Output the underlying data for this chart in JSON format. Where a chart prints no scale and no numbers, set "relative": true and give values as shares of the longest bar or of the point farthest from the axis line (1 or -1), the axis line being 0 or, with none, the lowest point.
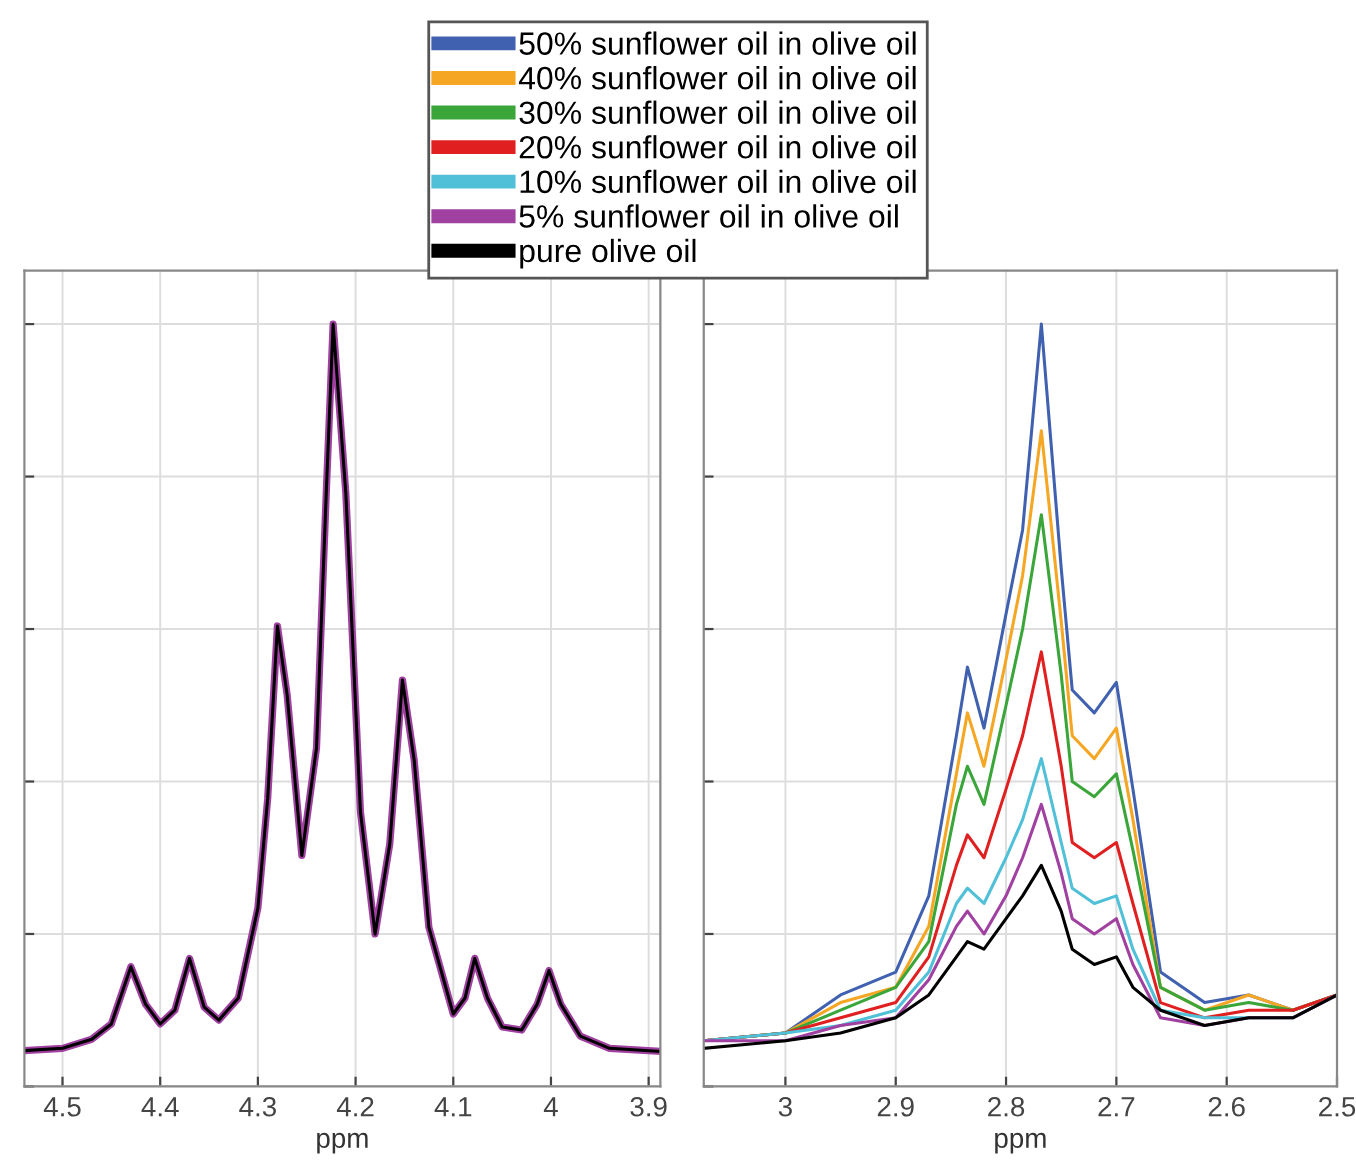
{
  "chart_data": [
    {
      "type": "line",
      "relative": true,
      "xlabel": "ppm",
      "xlim": [
        4.539,
        3.888
      ],
      "xticks": [
        4.5,
        4.4,
        4.3,
        4.2,
        4.1,
        4,
        3.9
      ],
      "grid": true,
      "tick_labels": "x",
      "x": [
        4.539,
        4.5,
        4.47,
        4.45,
        4.43,
        4.415,
        4.4,
        4.385,
        4.37,
        4.355,
        4.34,
        4.32,
        4.3,
        4.29,
        4.28,
        4.27,
        4.255,
        4.24,
        4.23,
        4.223,
        4.21,
        4.195,
        4.18,
        4.165,
        4.152,
        4.14,
        4.125,
        4.1,
        4.088,
        4.078,
        4.065,
        4.05,
        4.03,
        4.014,
        4.002,
        3.99,
        3.97,
        3.94,
        3.888
      ],
      "series": [
        {
          "color": "#a040a0",
          "values": [
            0.047,
            0.05,
            0.062,
            0.082,
            0.157,
            0.108,
            0.082,
            0.1,
            0.168,
            0.104,
            0.087,
            0.116,
            0.234,
            0.377,
            0.604,
            0.513,
            0.303,
            0.444,
            0.779,
            1,
            0.779,
            0.36,
            0.2,
            0.318,
            0.533,
            0.428,
            0.209,
            0.095,
            0.116,
            0.168,
            0.116,
            0.078,
            0.074,
            0.108,
            0.152,
            0.108,
            0.066,
            0.05,
            0.046
          ]
        },
        {
          "color": "#000000",
          "values": [
            0.047,
            0.05,
            0.062,
            0.082,
            0.157,
            0.108,
            0.082,
            0.1,
            0.168,
            0.104,
            0.087,
            0.116,
            0.234,
            0.377,
            0.604,
            0.513,
            0.303,
            0.444,
            0.779,
            1,
            0.779,
            0.36,
            0.2,
            0.318,
            0.533,
            0.428,
            0.209,
            0.095,
            0.116,
            0.168,
            0.116,
            0.078,
            0.074,
            0.108,
            0.152,
            0.108,
            0.066,
            0.05,
            0.046
          ]
        }
      ]
    },
    {
      "type": "line",
      "relative": true,
      "xlabel": "ppm",
      "xlim": [
        3.074,
        2.5
      ],
      "xticks": [
        3,
        2.9,
        2.8,
        2.7,
        2.6,
        2.5
      ],
      "grid": true,
      "tick_labels": "x",
      "legend": "top",
      "x": [
        3.074,
        3.0,
        2.95,
        2.9,
        2.87,
        2.845,
        2.835,
        2.82,
        2.8,
        2.785,
        2.768,
        2.75,
        2.74,
        2.72,
        2.7,
        2.685,
        2.66,
        2.62,
        2.58,
        2.54,
        2.5
      ],
      "series": [
        {
          "name": "50% sunflower oil in olive oil",
          "color": "#4060b0",
          "values": [
            0.06,
            0.07,
            0.12,
            0.15,
            0.25,
            0.46,
            0.55,
            0.47,
            0.62,
            0.73,
            1,
            0.68,
            0.52,
            0.49,
            0.53,
            0.39,
            0.15,
            0.11,
            0.12,
            0.1,
            0.12
          ]
        },
        {
          "name": "40% sunflower oil in olive oil",
          "color": "#f5a623",
          "values": [
            0.06,
            0.07,
            0.11,
            0.13,
            0.21,
            0.41,
            0.49,
            0.42,
            0.56,
            0.67,
            0.86,
            0.61,
            0.46,
            0.43,
            0.47,
            0.35,
            0.13,
            0.1,
            0.12,
            0.1,
            0.12
          ]
        },
        {
          "name": "30% sunflower oil in olive oil",
          "color": "#3aa63a",
          "values": [
            0.06,
            0.07,
            0.1,
            0.13,
            0.19,
            0.37,
            0.42,
            0.37,
            0.5,
            0.6,
            0.75,
            0.54,
            0.4,
            0.38,
            0.41,
            0.31,
            0.13,
            0.1,
            0.11,
            0.1,
            0.12
          ]
        },
        {
          "name": "20% sunflower oil in olive oil",
          "color": "#e02020",
          "values": [
            0.06,
            0.07,
            0.09,
            0.11,
            0.17,
            0.29,
            0.33,
            0.3,
            0.39,
            0.46,
            0.57,
            0.42,
            0.32,
            0.3,
            0.32,
            0.24,
            0.11,
            0.09,
            0.1,
            0.1,
            0.12
          ]
        },
        {
          "name": "10% sunflower oil in olive oil",
          "color": "#50c0d8",
          "values": [
            0.06,
            0.07,
            0.08,
            0.1,
            0.15,
            0.24,
            0.26,
            0.24,
            0.3,
            0.35,
            0.43,
            0.32,
            0.26,
            0.24,
            0.25,
            0.18,
            0.1,
            0.09,
            0.09,
            0.09,
            0.12
          ]
        },
        {
          "name": "5% sunflower oil in olive oil",
          "color": "#a040a0",
          "values": [
            0.06,
            0.06,
            0.08,
            0.09,
            0.14,
            0.21,
            0.23,
            0.2,
            0.25,
            0.3,
            0.37,
            0.28,
            0.22,
            0.2,
            0.22,
            0.16,
            0.09,
            0.08,
            0.09,
            0.09,
            0.12
          ]
        },
        {
          "name": "pure olive oil",
          "color": "#000000",
          "values": [
            0.05,
            0.06,
            0.07,
            0.09,
            0.12,
            0.17,
            0.19,
            0.18,
            0.22,
            0.25,
            0.29,
            0.23,
            0.18,
            0.16,
            0.17,
            0.13,
            0.1,
            0.08,
            0.09,
            0.09,
            0.12
          ]
        }
      ]
    }
  ]
}
